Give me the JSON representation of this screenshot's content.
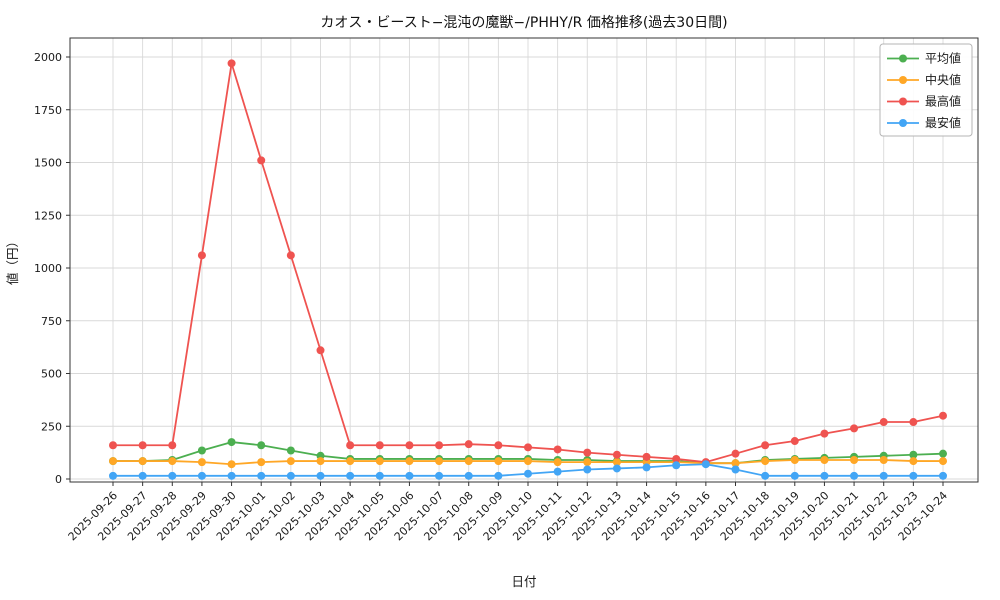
{
  "figure": {
    "background": "#ffffff",
    "grid_color": "#d9d9d9",
    "spine_color": "#333333",
    "text_color": "#1a1a1a"
  },
  "chart_data": {
    "type": "line",
    "title": "カオス・ビースト−混沌の魔獣−/PHHY/R 価格推移(過去30日間)",
    "xlabel": "日付",
    "ylabel": "値（円）",
    "ylim": [
      0,
      2000
    ],
    "yticks": [
      0,
      250,
      500,
      750,
      1000,
      1250,
      1500,
      1750,
      2000
    ],
    "grid": true,
    "legend_position": "upper right",
    "categories": [
      "2025-09-26",
      "2025-09-27",
      "2025-09-28",
      "2025-09-29",
      "2025-09-30",
      "2025-10-01",
      "2025-10-02",
      "2025-10-03",
      "2025-10-04",
      "2025-10-05",
      "2025-10-06",
      "2025-10-07",
      "2025-10-08",
      "2025-10-09",
      "2025-10-10",
      "2025-10-11",
      "2025-10-12",
      "2025-10-13",
      "2025-10-14",
      "2025-10-15",
      "2025-10-16",
      "2025-10-17",
      "2025-10-18",
      "2025-10-19",
      "2025-10-20",
      "2025-10-21",
      "2025-10-22",
      "2025-10-23",
      "2025-10-24"
    ],
    "series": [
      {
        "name": "平均値",
        "color": "#4caf50",
        "values": [
          85,
          85,
          90,
          135,
          175,
          160,
          135,
          110,
          95,
          95,
          95,
          95,
          95,
          95,
          95,
          90,
          90,
          85,
          85,
          85,
          75,
          75,
          90,
          95,
          100,
          105,
          110,
          115,
          120
        ]
      },
      {
        "name": "中央値",
        "color": "#ffa726",
        "values": [
          85,
          85,
          85,
          80,
          70,
          80,
          85,
          85,
          85,
          85,
          85,
          85,
          85,
          85,
          85,
          80,
          80,
          80,
          80,
          80,
          75,
          75,
          85,
          90,
          90,
          90,
          90,
          85,
          85
        ]
      },
      {
        "name": "最高値",
        "color": "#ef5350",
        "values": [
          160,
          160,
          160,
          1060,
          1970,
          1510,
          1060,
          610,
          160,
          160,
          160,
          160,
          165,
          160,
          150,
          140,
          125,
          115,
          105,
          95,
          80,
          120,
          160,
          180,
          215,
          240,
          270,
          270,
          300
        ]
      },
      {
        "name": "最安値",
        "color": "#42a5f5",
        "values": [
          15,
          15,
          15,
          15,
          15,
          15,
          15,
          15,
          15,
          15,
          15,
          15,
          15,
          15,
          25,
          35,
          45,
          50,
          55,
          65,
          70,
          45,
          15,
          15,
          15,
          15,
          15,
          15,
          15
        ]
      }
    ]
  }
}
